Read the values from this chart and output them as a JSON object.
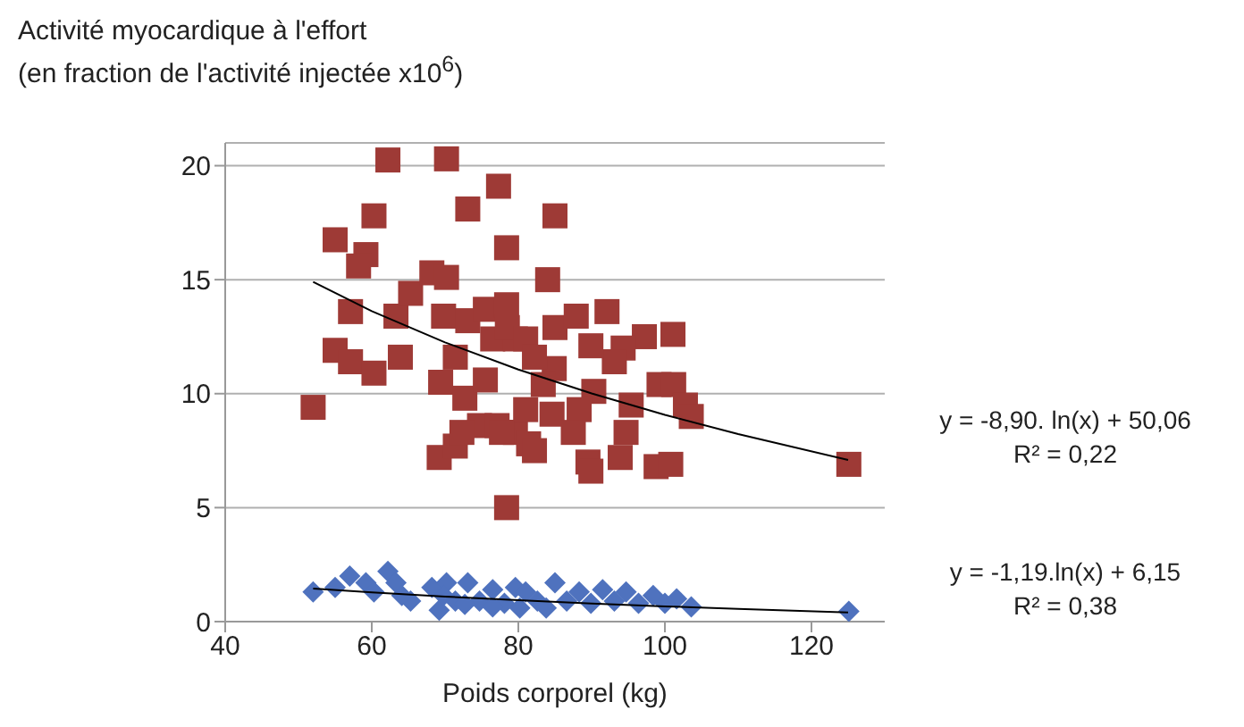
{
  "chart_data": {
    "type": "scatter",
    "title": "Activité myocardique à l'effort",
    "subtitle": "(en fraction de l'activité injectée x10$^{6}$)",
    "xlabel": "Poids corporel (kg)",
    "xlim": [
      40,
      130
    ],
    "xticks": [
      40,
      60,
      80,
      100,
      120
    ],
    "ylim": [
      0,
      21
    ],
    "yticks": [
      0,
      5,
      10,
      15,
      20
    ],
    "grid": "y",
    "legend": false,
    "series": [
      {
        "color": "#4f72be",
        "marker": "diamond",
        "x": [
          52,
          55,
          57,
          59.2,
          60.3,
          62.2,
          63.3,
          65.3,
          64.1,
          68.2,
          69.2,
          70.2,
          71.4,
          73.1,
          74.7,
          76.5,
          78.1,
          79.6,
          81,
          82.6,
          85,
          86.6,
          88.3,
          89.9,
          91.5,
          93.1,
          94.7,
          96.4,
          98.4,
          100,
          101.6,
          103.6,
          125.1,
          80.2,
          83.8,
          69.8,
          76.5,
          72.7
        ],
        "values": [
          1.3,
          1.5,
          2.0,
          1.7,
          1.3,
          2.2,
          1.7,
          0.9,
          1.15,
          1.5,
          0.5,
          1.7,
          0.9,
          1.7,
          0.9,
          1.4,
          0.8,
          1.5,
          1.3,
          0.9,
          1.7,
          0.9,
          1.3,
          0.8,
          1.4,
          0.9,
          1.3,
          0.8,
          1.15,
          0.8,
          1.0,
          0.65,
          0.45,
          0.6,
          0.6,
          1.15,
          0.65,
          0.75
        ]
      },
      {
        "color": "#9e3a36",
        "marker": "square",
        "x": [
          52,
          55,
          60.3,
          62.2,
          70.2,
          77.3,
          73.1,
          78.4,
          59.2,
          58.2,
          57.1,
          55,
          57.1,
          60.3,
          63.3,
          65.3,
          63.9,
          68.2,
          70.2,
          69.8,
          69.4,
          69.2,
          71.4,
          72.7,
          71.4,
          73.1,
          75.5,
          75.5,
          74.7,
          72.3,
          78.4,
          78.4,
          76.5,
          79.6,
          77.1,
          79.6,
          85,
          84,
          78.5,
          81,
          85,
          87.9,
          92.1,
          97.2,
          101.1,
          94.3,
          93.1,
          89.9,
          84.9,
          82.2,
          83.4,
          90.3,
          99.2,
          101.2,
          95.4,
          102.8,
          103.6,
          81,
          84.6,
          88.3,
          87.5,
          94.7,
          81.4,
          82.2,
          89.5,
          89.9,
          93.9,
          98.8,
          100.8,
          125.1,
          77.7
        ],
        "values": [
          9.4,
          16.75,
          17.8,
          20.25,
          20.3,
          19.1,
          18.1,
          16.4,
          16.1,
          15.6,
          13.6,
          11.9,
          11.4,
          10.9,
          13.4,
          14.4,
          11.6,
          15.3,
          15.1,
          13.4,
          10.5,
          7.2,
          7.7,
          9.8,
          11.6,
          13.2,
          13.7,
          10.6,
          8.6,
          8.3,
          13.9,
          5.0,
          12.4,
          12.4,
          8.6,
          8.3,
          17.8,
          15.0,
          12.9,
          12.4,
          12.9,
          13.4,
          13.6,
          12.5,
          12.6,
          12.0,
          11.4,
          12.1,
          11.1,
          11.6,
          10.4,
          10.1,
          10.4,
          10.4,
          9.5,
          9.5,
          9.0,
          9.3,
          9.1,
          9.3,
          8.3,
          8.3,
          7.8,
          7.5,
          7.0,
          6.6,
          7.2,
          6.8,
          6.9,
          6.9,
          8.3
        ]
      },
      {
        "type": "line",
        "color": "#000000",
        "marker": "none",
        "x": [
          52,
          60,
          70,
          80,
          90,
          100,
          110,
          125
        ],
        "values": [
          14.9,
          13.62,
          12.25,
          11.06,
          10.01,
          9.07,
          8.23,
          7.09
        ]
      },
      {
        "type": "line",
        "color": "#000000",
        "marker": "none",
        "x": [
          52,
          60,
          70,
          80,
          90,
          100,
          110,
          125
        ],
        "values": [
          1.45,
          1.28,
          1.1,
          0.94,
          0.79,
          0.67,
          0.56,
          0.4
        ]
      }
    ],
    "annotations": [
      "y = -8,90. ln(x) + 50,06\nR² = 0,22",
      "y = -1,19.ln(x) + 6,15\nR² = 0,38"
    ]
  }
}
